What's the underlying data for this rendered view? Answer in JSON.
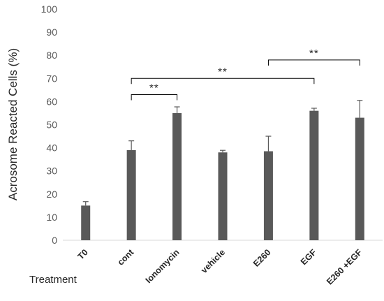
{
  "chart_data": {
    "type": "bar",
    "title": "",
    "xlabel": "Treatment",
    "ylabel": "Acrosome Reacted Cells (%)",
    "ylim": [
      0,
      100
    ],
    "yticks": [
      0,
      10,
      20,
      30,
      40,
      50,
      60,
      70,
      80,
      90,
      100
    ],
    "grid": false,
    "legend": "none",
    "categories": [
      "T0",
      "cont",
      "Ionomycin",
      "vehicle",
      "E260",
      "EGF",
      "E260 +EGF"
    ],
    "series": [
      {
        "values": [
          15,
          39,
          55,
          38,
          38.5,
          56,
          53
        ],
        "error_plus": [
          1.7,
          4,
          2.7,
          0.9,
          6.5,
          1.1,
          7.5
        ]
      }
    ],
    "significance": [
      {
        "from": "cont",
        "to": "Ionomycin",
        "y": 63,
        "label": "**"
      },
      {
        "from": "cont",
        "to": "EGF",
        "y": 70,
        "label": "**"
      },
      {
        "from": "E260",
        "to": "E260 +EGF",
        "y": 78,
        "label": "**"
      }
    ],
    "colors": {
      "bar": "#595959",
      "error": "#595959",
      "bracket": "#000000",
      "axis": "#d9d9d9"
    }
  }
}
